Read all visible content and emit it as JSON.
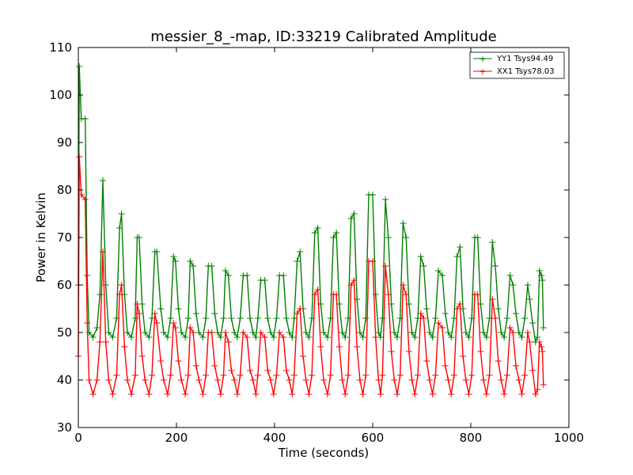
{
  "chart_data": {
    "type": "line",
    "title": "messier_8_-map, ID:33219 Calibrated Amplitude",
    "xlabel": "Time (seconds)",
    "ylabel": "Power in Kelvin",
    "xlim": [
      0,
      1000
    ],
    "ylim": [
      30,
      110
    ],
    "xticks": [
      0,
      200,
      400,
      600,
      800,
      1000
    ],
    "yticks": [
      30,
      40,
      50,
      60,
      70,
      80,
      90,
      100,
      110
    ],
    "grid": false,
    "legend_position": "top-right",
    "marker": "+",
    "series": [
      {
        "name": "YY1 Tsys94.49",
        "color": "#008000",
        "points": [
          [
            0,
            60
          ],
          [
            2,
            106
          ],
          [
            6,
            95
          ],
          [
            14,
            95
          ],
          [
            18,
            62
          ],
          [
            22,
            50
          ],
          [
            30,
            49
          ],
          [
            38,
            51
          ],
          [
            44,
            58
          ],
          [
            50,
            82
          ],
          [
            56,
            60
          ],
          [
            62,
            50
          ],
          [
            70,
            49
          ],
          [
            78,
            53
          ],
          [
            84,
            72
          ],
          [
            88,
            75
          ],
          [
            94,
            58
          ],
          [
            100,
            50
          ],
          [
            108,
            49
          ],
          [
            116,
            53
          ],
          [
            120,
            70
          ],
          [
            124,
            70
          ],
          [
            130,
            56
          ],
          [
            136,
            50
          ],
          [
            144,
            49
          ],
          [
            150,
            53
          ],
          [
            156,
            67
          ],
          [
            160,
            67
          ],
          [
            168,
            55
          ],
          [
            174,
            50
          ],
          [
            182,
            49
          ],
          [
            188,
            53
          ],
          [
            194,
            66
          ],
          [
            198,
            65
          ],
          [
            204,
            55
          ],
          [
            210,
            50
          ],
          [
            218,
            49
          ],
          [
            224,
            53
          ],
          [
            228,
            65
          ],
          [
            234,
            64
          ],
          [
            240,
            54
          ],
          [
            246,
            50
          ],
          [
            254,
            49
          ],
          [
            260,
            53
          ],
          [
            265,
            64
          ],
          [
            272,
            64
          ],
          [
            278,
            54
          ],
          [
            284,
            50
          ],
          [
            290,
            49
          ],
          [
            296,
            53
          ],
          [
            300,
            63
          ],
          [
            306,
            62
          ],
          [
            312,
            53
          ],
          [
            318,
            50
          ],
          [
            324,
            49
          ],
          [
            330,
            53
          ],
          [
            336,
            62
          ],
          [
            344,
            62
          ],
          [
            350,
            53
          ],
          [
            356,
            50
          ],
          [
            362,
            49
          ],
          [
            366,
            53
          ],
          [
            372,
            61
          ],
          [
            380,
            61
          ],
          [
            386,
            53
          ],
          [
            392,
            50
          ],
          [
            398,
            49
          ],
          [
            404,
            53
          ],
          [
            410,
            62
          ],
          [
            418,
            62
          ],
          [
            424,
            53
          ],
          [
            430,
            50
          ],
          [
            436,
            49
          ],
          [
            440,
            53
          ],
          [
            446,
            65
          ],
          [
            452,
            67
          ],
          [
            458,
            55
          ],
          [
            464,
            50
          ],
          [
            470,
            49
          ],
          [
            476,
            53
          ],
          [
            482,
            71
          ],
          [
            488,
            72
          ],
          [
            494,
            56
          ],
          [
            500,
            50
          ],
          [
            508,
            49
          ],
          [
            514,
            53
          ],
          [
            520,
            70
          ],
          [
            526,
            71
          ],
          [
            532,
            56
          ],
          [
            538,
            50
          ],
          [
            544,
            49
          ],
          [
            550,
            53
          ],
          [
            556,
            74
          ],
          [
            562,
            75
          ],
          [
            568,
            57
          ],
          [
            574,
            50
          ],
          [
            580,
            49
          ],
          [
            586,
            53
          ],
          [
            592,
            79
          ],
          [
            600,
            79
          ],
          [
            606,
            58
          ],
          [
            612,
            50
          ],
          [
            616,
            49
          ],
          [
            620,
            53
          ],
          [
            626,
            78
          ],
          [
            632,
            70
          ],
          [
            638,
            56
          ],
          [
            644,
            50
          ],
          [
            650,
            49
          ],
          [
            656,
            53
          ],
          [
            662,
            73
          ],
          [
            668,
            70
          ],
          [
            674,
            56
          ],
          [
            680,
            50
          ],
          [
            686,
            49
          ],
          [
            692,
            53
          ],
          [
            698,
            66
          ],
          [
            704,
            64
          ],
          [
            710,
            55
          ],
          [
            716,
            50
          ],
          [
            722,
            49
          ],
          [
            728,
            53
          ],
          [
            734,
            63
          ],
          [
            742,
            62
          ],
          [
            748,
            54
          ],
          [
            754,
            50
          ],
          [
            760,
            49
          ],
          [
            766,
            53
          ],
          [
            772,
            66
          ],
          [
            778,
            68
          ],
          [
            784,
            55
          ],
          [
            790,
            50
          ],
          [
            796,
            49
          ],
          [
            802,
            53
          ],
          [
            808,
            70
          ],
          [
            814,
            70
          ],
          [
            820,
            56
          ],
          [
            826,
            50
          ],
          [
            832,
            49
          ],
          [
            838,
            53
          ],
          [
            844,
            69
          ],
          [
            850,
            64
          ],
          [
            856,
            55
          ],
          [
            862,
            50
          ],
          [
            868,
            49
          ],
          [
            874,
            53
          ],
          [
            880,
            62
          ],
          [
            886,
            60
          ],
          [
            892,
            54
          ],
          [
            898,
            50
          ],
          [
            904,
            49
          ],
          [
            910,
            53
          ],
          [
            916,
            60
          ],
          [
            920,
            57
          ],
          [
            926,
            52
          ],
          [
            932,
            48
          ],
          [
            936,
            49
          ],
          [
            940,
            63
          ],
          [
            944,
            62
          ],
          [
            946,
            61
          ],
          [
            948,
            51
          ]
        ]
      },
      {
        "name": "XX1 Tsys78.03",
        "color": "#ff0000",
        "points": [
          [
            0,
            45
          ],
          [
            2,
            87
          ],
          [
            6,
            79
          ],
          [
            14,
            78
          ],
          [
            18,
            52
          ],
          [
            22,
            40
          ],
          [
            30,
            37
          ],
          [
            38,
            40
          ],
          [
            44,
            48
          ],
          [
            50,
            67
          ],
          [
            56,
            48
          ],
          [
            62,
            40
          ],
          [
            70,
            37
          ],
          [
            78,
            41
          ],
          [
            84,
            58
          ],
          [
            88,
            60
          ],
          [
            94,
            47
          ],
          [
            100,
            40
          ],
          [
            108,
            37
          ],
          [
            116,
            41
          ],
          [
            120,
            56
          ],
          [
            124,
            54
          ],
          [
            130,
            45
          ],
          [
            136,
            40
          ],
          [
            144,
            37
          ],
          [
            150,
            41
          ],
          [
            156,
            54
          ],
          [
            160,
            52
          ],
          [
            168,
            44
          ],
          [
            174,
            40
          ],
          [
            182,
            37
          ],
          [
            188,
            41
          ],
          [
            194,
            52
          ],
          [
            198,
            51
          ],
          [
            204,
            44
          ],
          [
            210,
            40
          ],
          [
            218,
            37
          ],
          [
            224,
            41
          ],
          [
            228,
            51
          ],
          [
            234,
            50
          ],
          [
            240,
            43
          ],
          [
            246,
            40
          ],
          [
            254,
            37
          ],
          [
            260,
            41
          ],
          [
            265,
            50
          ],
          [
            272,
            50
          ],
          [
            278,
            43
          ],
          [
            284,
            40
          ],
          [
            290,
            37
          ],
          [
            296,
            41
          ],
          [
            300,
            50
          ],
          [
            306,
            48
          ],
          [
            312,
            42
          ],
          [
            318,
            40
          ],
          [
            324,
            37
          ],
          [
            330,
            41
          ],
          [
            336,
            50
          ],
          [
            344,
            49
          ],
          [
            350,
            42
          ],
          [
            356,
            40
          ],
          [
            362,
            37
          ],
          [
            366,
            41
          ],
          [
            372,
            50
          ],
          [
            380,
            49
          ],
          [
            386,
            42
          ],
          [
            392,
            40
          ],
          [
            398,
            37
          ],
          [
            404,
            41
          ],
          [
            410,
            50
          ],
          [
            418,
            49
          ],
          [
            424,
            42
          ],
          [
            430,
            40
          ],
          [
            436,
            37
          ],
          [
            440,
            41
          ],
          [
            446,
            54
          ],
          [
            452,
            55
          ],
          [
            458,
            45
          ],
          [
            464,
            40
          ],
          [
            470,
            37
          ],
          [
            476,
            41
          ],
          [
            482,
            58
          ],
          [
            488,
            59
          ],
          [
            494,
            47
          ],
          [
            500,
            40
          ],
          [
            508,
            37
          ],
          [
            514,
            41
          ],
          [
            520,
            58
          ],
          [
            526,
            58
          ],
          [
            532,
            47
          ],
          [
            538,
            40
          ],
          [
            544,
            37
          ],
          [
            550,
            41
          ],
          [
            556,
            60
          ],
          [
            562,
            61
          ],
          [
            568,
            47
          ],
          [
            574,
            40
          ],
          [
            580,
            37
          ],
          [
            586,
            41
          ],
          [
            592,
            65
          ],
          [
            600,
            65
          ],
          [
            606,
            49
          ],
          [
            612,
            40
          ],
          [
            616,
            37
          ],
          [
            620,
            41
          ],
          [
            626,
            64
          ],
          [
            632,
            58
          ],
          [
            638,
            46
          ],
          [
            644,
            40
          ],
          [
            650,
            37
          ],
          [
            656,
            41
          ],
          [
            662,
            60
          ],
          [
            668,
            58
          ],
          [
            674,
            46
          ],
          [
            680,
            40
          ],
          [
            686,
            37
          ],
          [
            692,
            41
          ],
          [
            698,
            54
          ],
          [
            704,
            53
          ],
          [
            710,
            44
          ],
          [
            716,
            40
          ],
          [
            722,
            37
          ],
          [
            728,
            41
          ],
          [
            734,
            52
          ],
          [
            742,
            51
          ],
          [
            748,
            43
          ],
          [
            754,
            40
          ],
          [
            760,
            37
          ],
          [
            766,
            41
          ],
          [
            772,
            55
          ],
          [
            778,
            56
          ],
          [
            784,
            45
          ],
          [
            790,
            40
          ],
          [
            796,
            37
          ],
          [
            802,
            41
          ],
          [
            808,
            58
          ],
          [
            814,
            58
          ],
          [
            820,
            46
          ],
          [
            826,
            40
          ],
          [
            832,
            37
          ],
          [
            838,
            41
          ],
          [
            844,
            57
          ],
          [
            850,
            53
          ],
          [
            856,
            44
          ],
          [
            862,
            40
          ],
          [
            868,
            37
          ],
          [
            874,
            41
          ],
          [
            880,
            51
          ],
          [
            886,
            50
          ],
          [
            892,
            43
          ],
          [
            898,
            40
          ],
          [
            904,
            37
          ],
          [
            910,
            41
          ],
          [
            916,
            50
          ],
          [
            920,
            48
          ],
          [
            926,
            42
          ],
          [
            932,
            37
          ],
          [
            936,
            38
          ],
          [
            940,
            48
          ],
          [
            944,
            47
          ],
          [
            946,
            46
          ],
          [
            948,
            39
          ]
        ]
      }
    ]
  }
}
